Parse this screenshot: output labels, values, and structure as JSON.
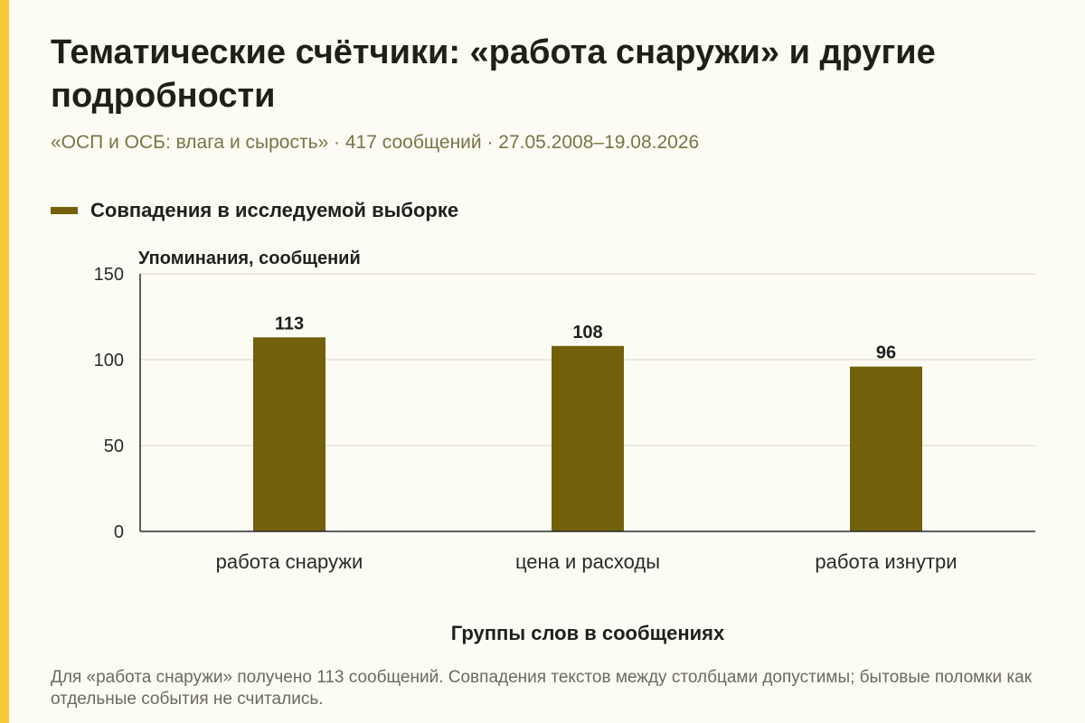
{
  "header": {
    "title": "Тематические счётчики: «работа снаружи» и другие подробности",
    "subtitle": "«ОСП и ОСБ: влага и сырость» · 417 сообщений · 27.05.2008–19.08.2026"
  },
  "legend": {
    "label": "Совпадения в исследуемой выборке",
    "color": "#73600b"
  },
  "chart_data": {
    "type": "bar",
    "categories": [
      "работа снаружи",
      "цена и расходы",
      "работа изнутри"
    ],
    "series": [
      {
        "name": "Совпадения в исследуемой выборке",
        "values": [
          113,
          108,
          96
        ]
      }
    ],
    "value_labels": [
      "113",
      "108",
      "96"
    ],
    "ylabel": "Упоминания, сообщений",
    "xlabel": "Группы слов в сообщениях",
    "ylim": [
      0,
      150
    ],
    "yticks": [
      0,
      50,
      100,
      150
    ],
    "grid": true,
    "legend_position": "top-left",
    "bar_color": "#73600b"
  },
  "footnote": "Для «работа снаружи» получено 113 сообщений. Совпадения текстов между столбцами допустимы; бытовые поломки как отдельные события не считались."
}
